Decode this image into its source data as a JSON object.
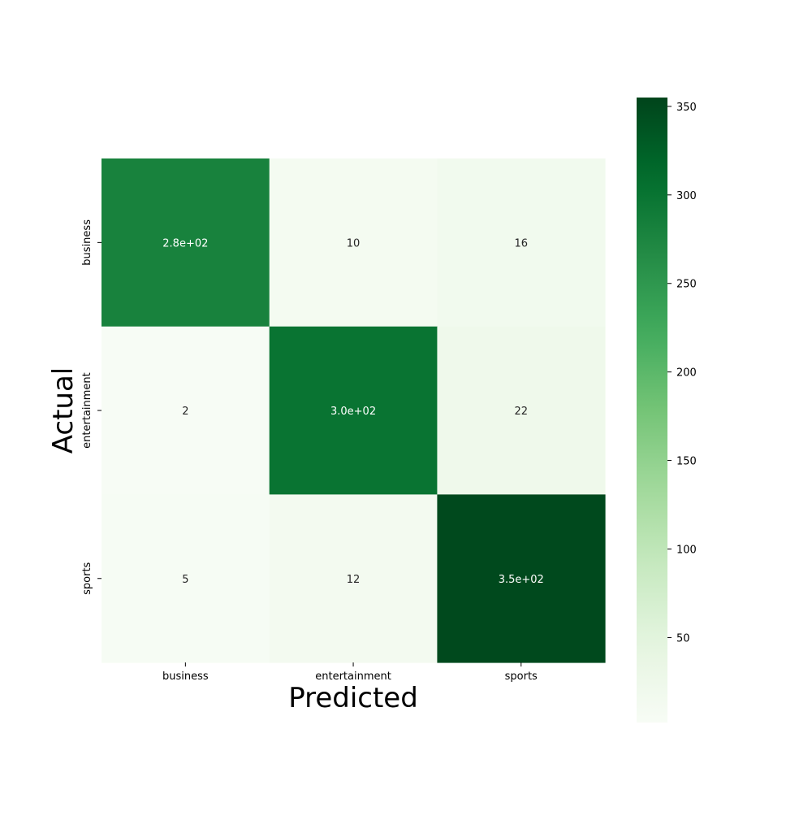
{
  "chart_data": {
    "type": "heatmap",
    "xlabel": "Predicted",
    "ylabel": "Actual",
    "x_categories": [
      "business",
      "entertainment",
      "sports"
    ],
    "y_categories": [
      "business",
      "entertainment",
      "sports"
    ],
    "values": [
      [
        280,
        10,
        16
      ],
      [
        2,
        300,
        22
      ],
      [
        5,
        12,
        350
      ]
    ],
    "annotations": [
      [
        "2.8e+02",
        "10",
        "16"
      ],
      [
        "2",
        "3.0e+02",
        "22"
      ],
      [
        "5",
        "12",
        "3.5e+02"
      ]
    ],
    "colormap": "Greens",
    "colorbar": {
      "min": 2,
      "max": 355,
      "ticks": [
        50,
        100,
        150,
        200,
        250,
        300,
        350
      ]
    },
    "colors": {
      "low": "#f7fcf5",
      "high": "#00441b"
    }
  }
}
